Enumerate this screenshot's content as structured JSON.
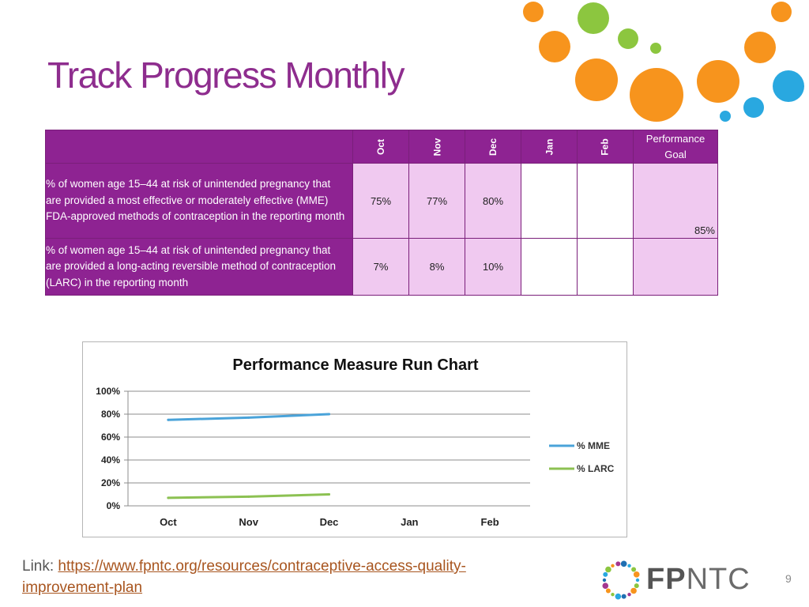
{
  "slide": {
    "title": "Track Progress Monthly",
    "page_number": "9"
  },
  "colors": {
    "title": "#8e2d8e",
    "table_header": "#8e2392",
    "value_cell": "#f0c9f0",
    "mme_line": "#4aa3d9",
    "larc_line": "#8cc152",
    "dot_orange": "#f7941d",
    "dot_green": "#8cc63f",
    "dot_blue": "#29a8e0"
  },
  "table": {
    "months": [
      "Oct",
      "Nov",
      "Dec",
      "Jan",
      "Feb"
    ],
    "goal_header_line1": "Performance",
    "goal_header_line2": "Goal",
    "rows": [
      {
        "measure": "% of women age 15–44 at risk of unintended pregnancy that are provided a most effective or moderately effective (MME) FDA-approved methods of contraception in the reporting month",
        "values": [
          "75%",
          "77%",
          "80%",
          "",
          ""
        ],
        "goal": "85%"
      },
      {
        "measure": "% of women age 15–44 at risk of unintended pregnancy that are provided a long-acting reversible method of contraception (LARC) in the reporting month",
        "values": [
          "7%",
          "8%",
          "10%",
          "",
          ""
        ],
        "goal": ""
      }
    ]
  },
  "chart_data": {
    "type": "line",
    "title": "Performance Measure Run Chart",
    "categories": [
      "Oct",
      "Nov",
      "Dec",
      "Jan",
      "Feb"
    ],
    "y_ticks": [
      "0%",
      "20%",
      "40%",
      "60%",
      "80%",
      "100%"
    ],
    "ylim": [
      0,
      100
    ],
    "grid": true,
    "legend_position": "right",
    "series": [
      {
        "name": "% MME",
        "values": [
          75,
          77,
          80,
          null,
          null
        ],
        "color": "#4aa3d9"
      },
      {
        "name": "% LARC",
        "values": [
          7,
          8,
          10,
          null,
          null
        ],
        "color": "#8cc152"
      }
    ]
  },
  "footer": {
    "link_label": "Link: ",
    "link_url": "https://www.fpntc.org/resources/contraceptive-access-quality-improvement-plan"
  },
  "logo": {
    "text_bold": "FP",
    "text_regular": "NTC"
  }
}
